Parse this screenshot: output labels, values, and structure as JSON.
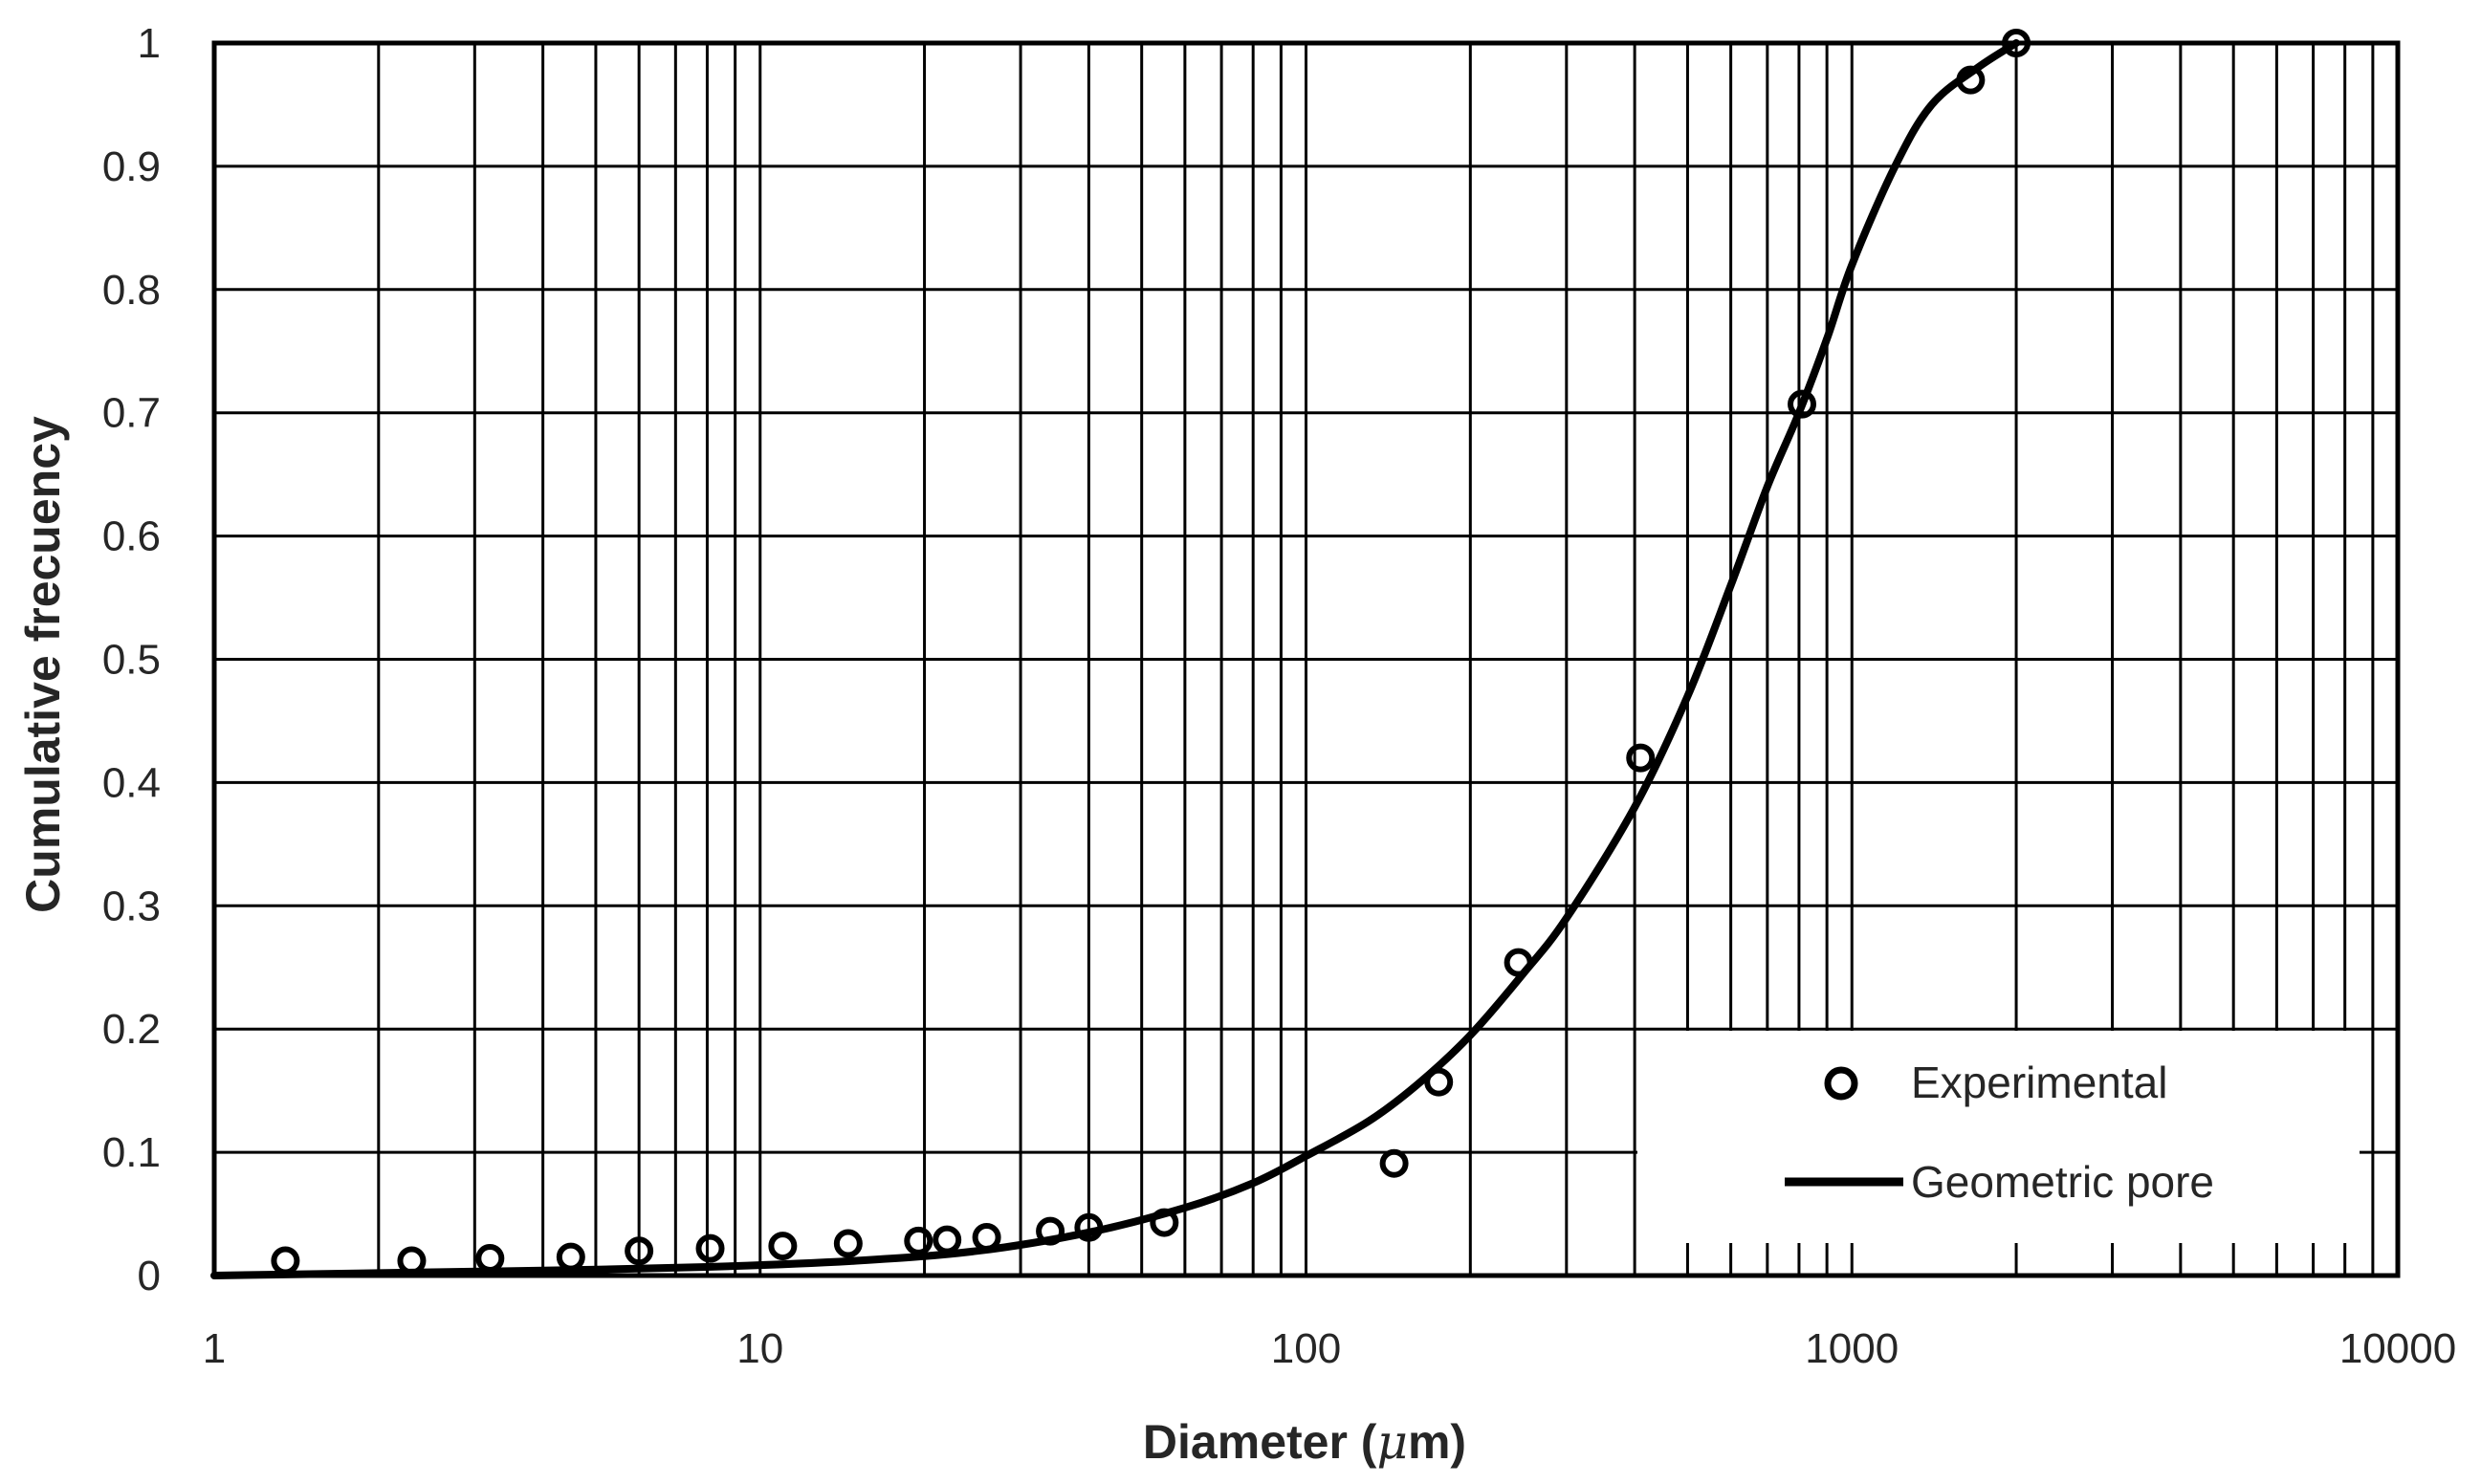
{
  "chart_data": {
    "type": "scatter",
    "title": "",
    "xlabel_main": "Diameter (",
    "xlabel_symbol": "μ",
    "xlabel_unit": "m)",
    "ylabel": "Cumulative frecuency",
    "x_scale": "log",
    "xlim": [
      1,
      10000
    ],
    "ylim": [
      0,
      1
    ],
    "grid": true,
    "legend_position": "bottom-right",
    "x_ticks": [
      {
        "value": 1,
        "label": "1"
      },
      {
        "value": 10,
        "label": "10"
      },
      {
        "value": 100,
        "label": "100"
      },
      {
        "value": 1000,
        "label": "1000"
      },
      {
        "value": 10000,
        "label": "10000"
      }
    ],
    "y_ticks": [
      {
        "value": 0,
        "label": "0"
      },
      {
        "value": 0.1,
        "label": "0.1"
      },
      {
        "value": 0.2,
        "label": "0.2"
      },
      {
        "value": 0.3,
        "label": "0.3"
      },
      {
        "value": 0.4,
        "label": "0.4"
      },
      {
        "value": 0.5,
        "label": "0.5"
      },
      {
        "value": 0.6,
        "label": "0.6"
      },
      {
        "value": 0.7,
        "label": "0.7"
      },
      {
        "value": 0.8,
        "label": "0.8"
      },
      {
        "value": 0.9,
        "label": "0.9"
      },
      {
        "value": 1,
        "label": "1"
      }
    ],
    "series": [
      {
        "name": "Experimental",
        "kind": "markers",
        "marker": "open-circle",
        "color": "#000000",
        "x": [
          1.35,
          2.3,
          3.2,
          4.5,
          6.0,
          8.1,
          11,
          14.5,
          19.5,
          22,
          26,
          34,
          40,
          55,
          145,
          175,
          245,
          410,
          810,
          1650,
          2000
        ],
        "y": [
          0.012,
          0.012,
          0.014,
          0.015,
          0.02,
          0.022,
          0.024,
          0.026,
          0.028,
          0.029,
          0.031,
          0.036,
          0.039,
          0.043,
          0.091,
          0.157,
          0.254,
          0.42,
          0.707,
          0.97,
          1.0
        ]
      },
      {
        "name": "Geometric pore",
        "kind": "line",
        "color": "#000000",
        "x": [
          1,
          2,
          4,
          8,
          15,
          25,
          40,
          60,
          80,
          100,
          130,
          160,
          200,
          250,
          300,
          400,
          500,
          600,
          700,
          800,
          900,
          1000,
          1200,
          1400,
          1700,
          2000
        ],
        "y": [
          0.0,
          0.002,
          0.004,
          0.007,
          0.012,
          0.02,
          0.035,
          0.055,
          0.075,
          0.097,
          0.125,
          0.155,
          0.195,
          0.245,
          0.29,
          0.38,
          0.47,
          0.56,
          0.64,
          0.7,
          0.76,
          0.82,
          0.9,
          0.95,
          0.98,
          1.0
        ]
      }
    ]
  }
}
